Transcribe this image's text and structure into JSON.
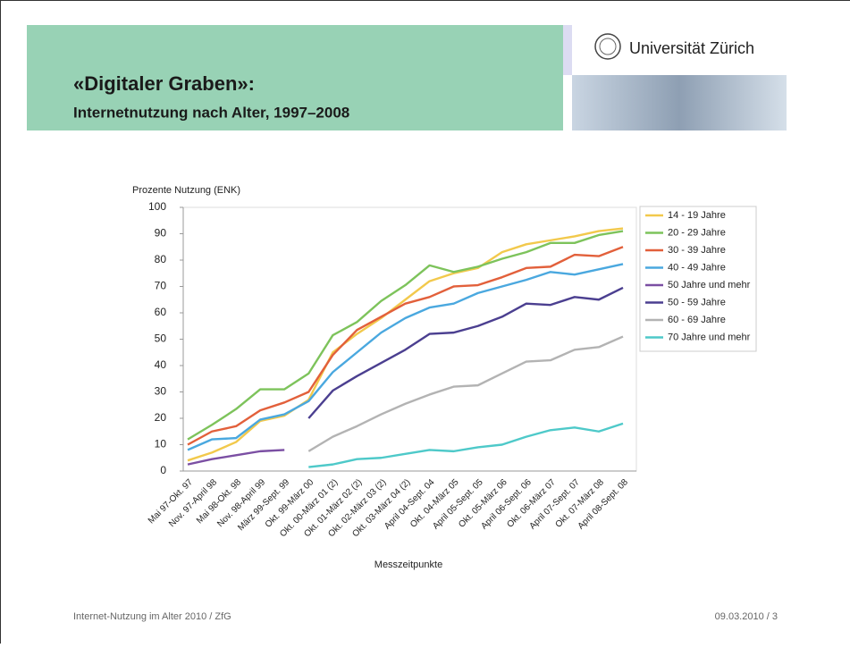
{
  "header": {
    "title": "«Digitaler Graben»:",
    "subtitle": "Internetnutzung nach Alter, 1997–2008",
    "logo_text": "Universität Zürich"
  },
  "footer": {
    "left": "Internet-Nutzung im Alter 2010 / ZfG",
    "right": "09.03.2010  /  3"
  },
  "chart_data": {
    "type": "line",
    "y_label": "Prozente Nutzung (ENK)",
    "x_label": "Messzeitpunkte",
    "categories": [
      "Mai 97-Okt. 97",
      "Nov. 97-April 98",
      "Mai 98-Okt. 98",
      "Nov. 98-April 99",
      "März 99-Sept. 99",
      "Okt. 99-März 00",
      "Okt. 00-März 01 (2)",
      "Okt. 01-März 02 (2)",
      "Okt. 02-März 03 (2)",
      "Okt. 03-März 04 (2)",
      "April 04-Sept. 04",
      "Okt. 04-März 05",
      "April 05-Sept. 05",
      "Okt. 05-März 06",
      "April 06-Sept. 06",
      "Okt. 06-März 07",
      "April 07-Sept. 07",
      "Okt. 07-März 08",
      "April 08-Sept. 08"
    ],
    "series": [
      {
        "name": "14 - 19 Jahre",
        "color": "#f2c94c",
        "values": [
          4,
          7,
          11,
          19,
          21,
          27,
          45,
          52,
          58,
          65,
          72,
          75,
          77,
          83,
          86,
          87.5,
          89,
          91,
          92
        ]
      },
      {
        "name": "20 - 29 Jahre",
        "color": "#7dc35b",
        "values": [
          12,
          17.5,
          23.5,
          31,
          31,
          37,
          51.5,
          56.5,
          64.5,
          70.5,
          78,
          75.5,
          77.5,
          80.5,
          83,
          86.5,
          86.5,
          89.5,
          91
        ]
      },
      {
        "name": "30 - 39 Jahre",
        "color": "#e2603b",
        "values": [
          10,
          15,
          17,
          23,
          26,
          30,
          44,
          53.5,
          58.5,
          63.5,
          66,
          70,
          70.5,
          73.5,
          77,
          77.5,
          82,
          81.5,
          85
        ]
      },
      {
        "name": "40 - 49 Jahre",
        "color": "#4aa8df",
        "values": [
          8,
          12,
          12.5,
          19.5,
          21.5,
          26.5,
          37.5,
          45,
          52.5,
          58,
          62,
          63.5,
          67.5,
          70,
          72.5,
          75.5,
          74.5,
          76.5,
          78.5
        ]
      },
      {
        "name": "50 Jahre und mehr",
        "color": "#7b4fa3",
        "values": [
          2.5,
          4.5,
          6,
          7.5,
          8,
          null,
          null,
          null,
          null,
          null,
          null,
          null,
          null,
          null,
          null,
          null,
          null,
          null,
          null
        ]
      },
      {
        "name": "50 - 59 Jahre",
        "color": "#4b3f90",
        "values": [
          null,
          null,
          null,
          null,
          null,
          20,
          30.5,
          36,
          41,
          46,
          52,
          52.5,
          55,
          58.5,
          63.5,
          63,
          66,
          65,
          69.5
        ]
      },
      {
        "name": "60 - 69 Jahre",
        "color": "#b3b3b3",
        "values": [
          null,
          null,
          null,
          null,
          null,
          7.5,
          13,
          17,
          21.5,
          25.5,
          29,
          32,
          32.5,
          37,
          41.5,
          42,
          46,
          47,
          51
        ]
      },
      {
        "name": "70 Jahre und mehr",
        "color": "#4ec9c9",
        "values": [
          null,
          null,
          null,
          null,
          null,
          1.5,
          2.5,
          4.5,
          5,
          6.5,
          8,
          7.5,
          9,
          10,
          13,
          15.5,
          16.5,
          15,
          18
        ]
      }
    ],
    "ylim": [
      0,
      100
    ],
    "yticks": [
      0,
      10,
      20,
      30,
      40,
      50,
      60,
      70,
      80,
      90,
      100
    ]
  }
}
